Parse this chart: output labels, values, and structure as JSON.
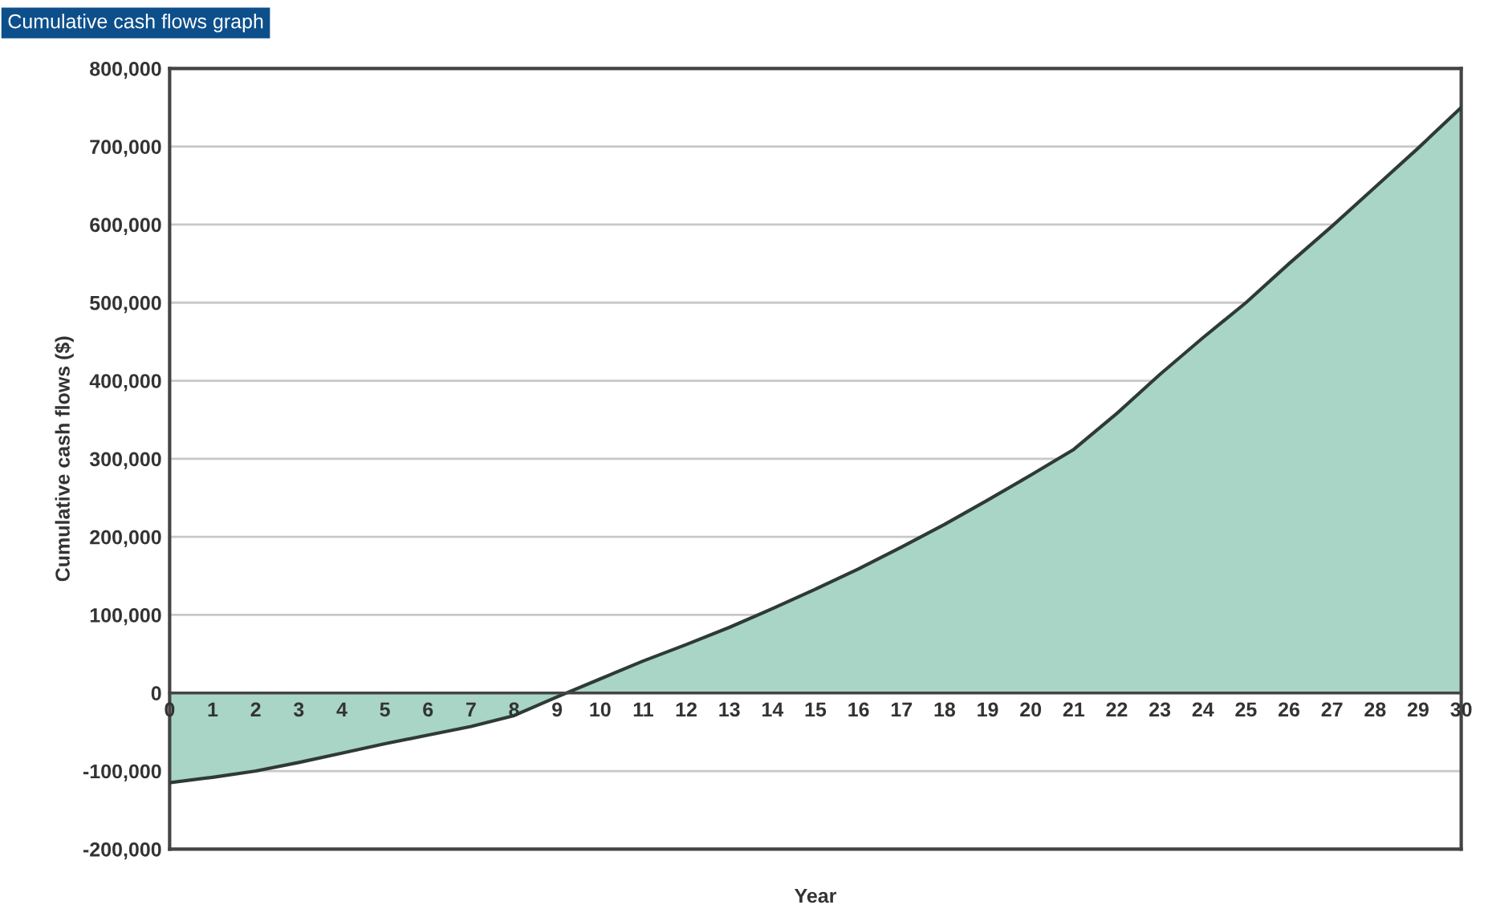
{
  "chart_data": {
    "type": "area",
    "title": "Cumulative cash flows graph",
    "xlabel": "Year",
    "ylabel": "Cumulative cash flows ($)",
    "x": [
      0,
      1,
      2,
      3,
      4,
      5,
      6,
      7,
      8,
      9,
      10,
      11,
      12,
      13,
      14,
      15,
      16,
      17,
      18,
      19,
      20,
      21,
      22,
      23,
      24,
      25,
      26,
      27,
      28,
      29,
      30
    ],
    "series": [
      {
        "color": "#a8d5c6",
        "values": [
          -115000,
          -108000,
          -100000,
          -89000,
          -77000,
          -65000,
          -54000,
          -43000,
          -29000,
          -5000,
          18000,
          41000,
          62000,
          84000,
          108000,
          133000,
          159000,
          187000,
          216000,
          247000,
          279000,
          312000,
          358000,
          408000,
          455000,
          500000,
          550000,
          598000,
          648000,
          698000,
          750000
        ]
      }
    ],
    "xlim": [
      0,
      30
    ],
    "xticks": [
      0,
      1,
      2,
      3,
      4,
      5,
      6,
      7,
      8,
      9,
      10,
      11,
      12,
      13,
      14,
      15,
      16,
      17,
      18,
      19,
      20,
      21,
      22,
      23,
      24,
      25,
      26,
      27,
      28,
      29,
      30
    ],
    "ylim": [
      -200000,
      800000
    ],
    "yticks": [
      {
        "value": -200000,
        "label": "-200,000"
      },
      {
        "value": -100000,
        "label": "-100,000"
      },
      0,
      {
        "value": 100000,
        "label": "100,000"
      },
      {
        "value": 200000,
        "label": "200,000"
      },
      {
        "value": 300000,
        "label": "300,000"
      },
      {
        "value": 400000,
        "label": "400,000"
      },
      {
        "value": 500000,
        "label": "500,000"
      },
      {
        "value": 600000,
        "label": "600,000"
      },
      {
        "value": 700000,
        "label": "700,000"
      },
      {
        "value": 800000,
        "label": "800,000"
      }
    ],
    "grid": "y"
  }
}
